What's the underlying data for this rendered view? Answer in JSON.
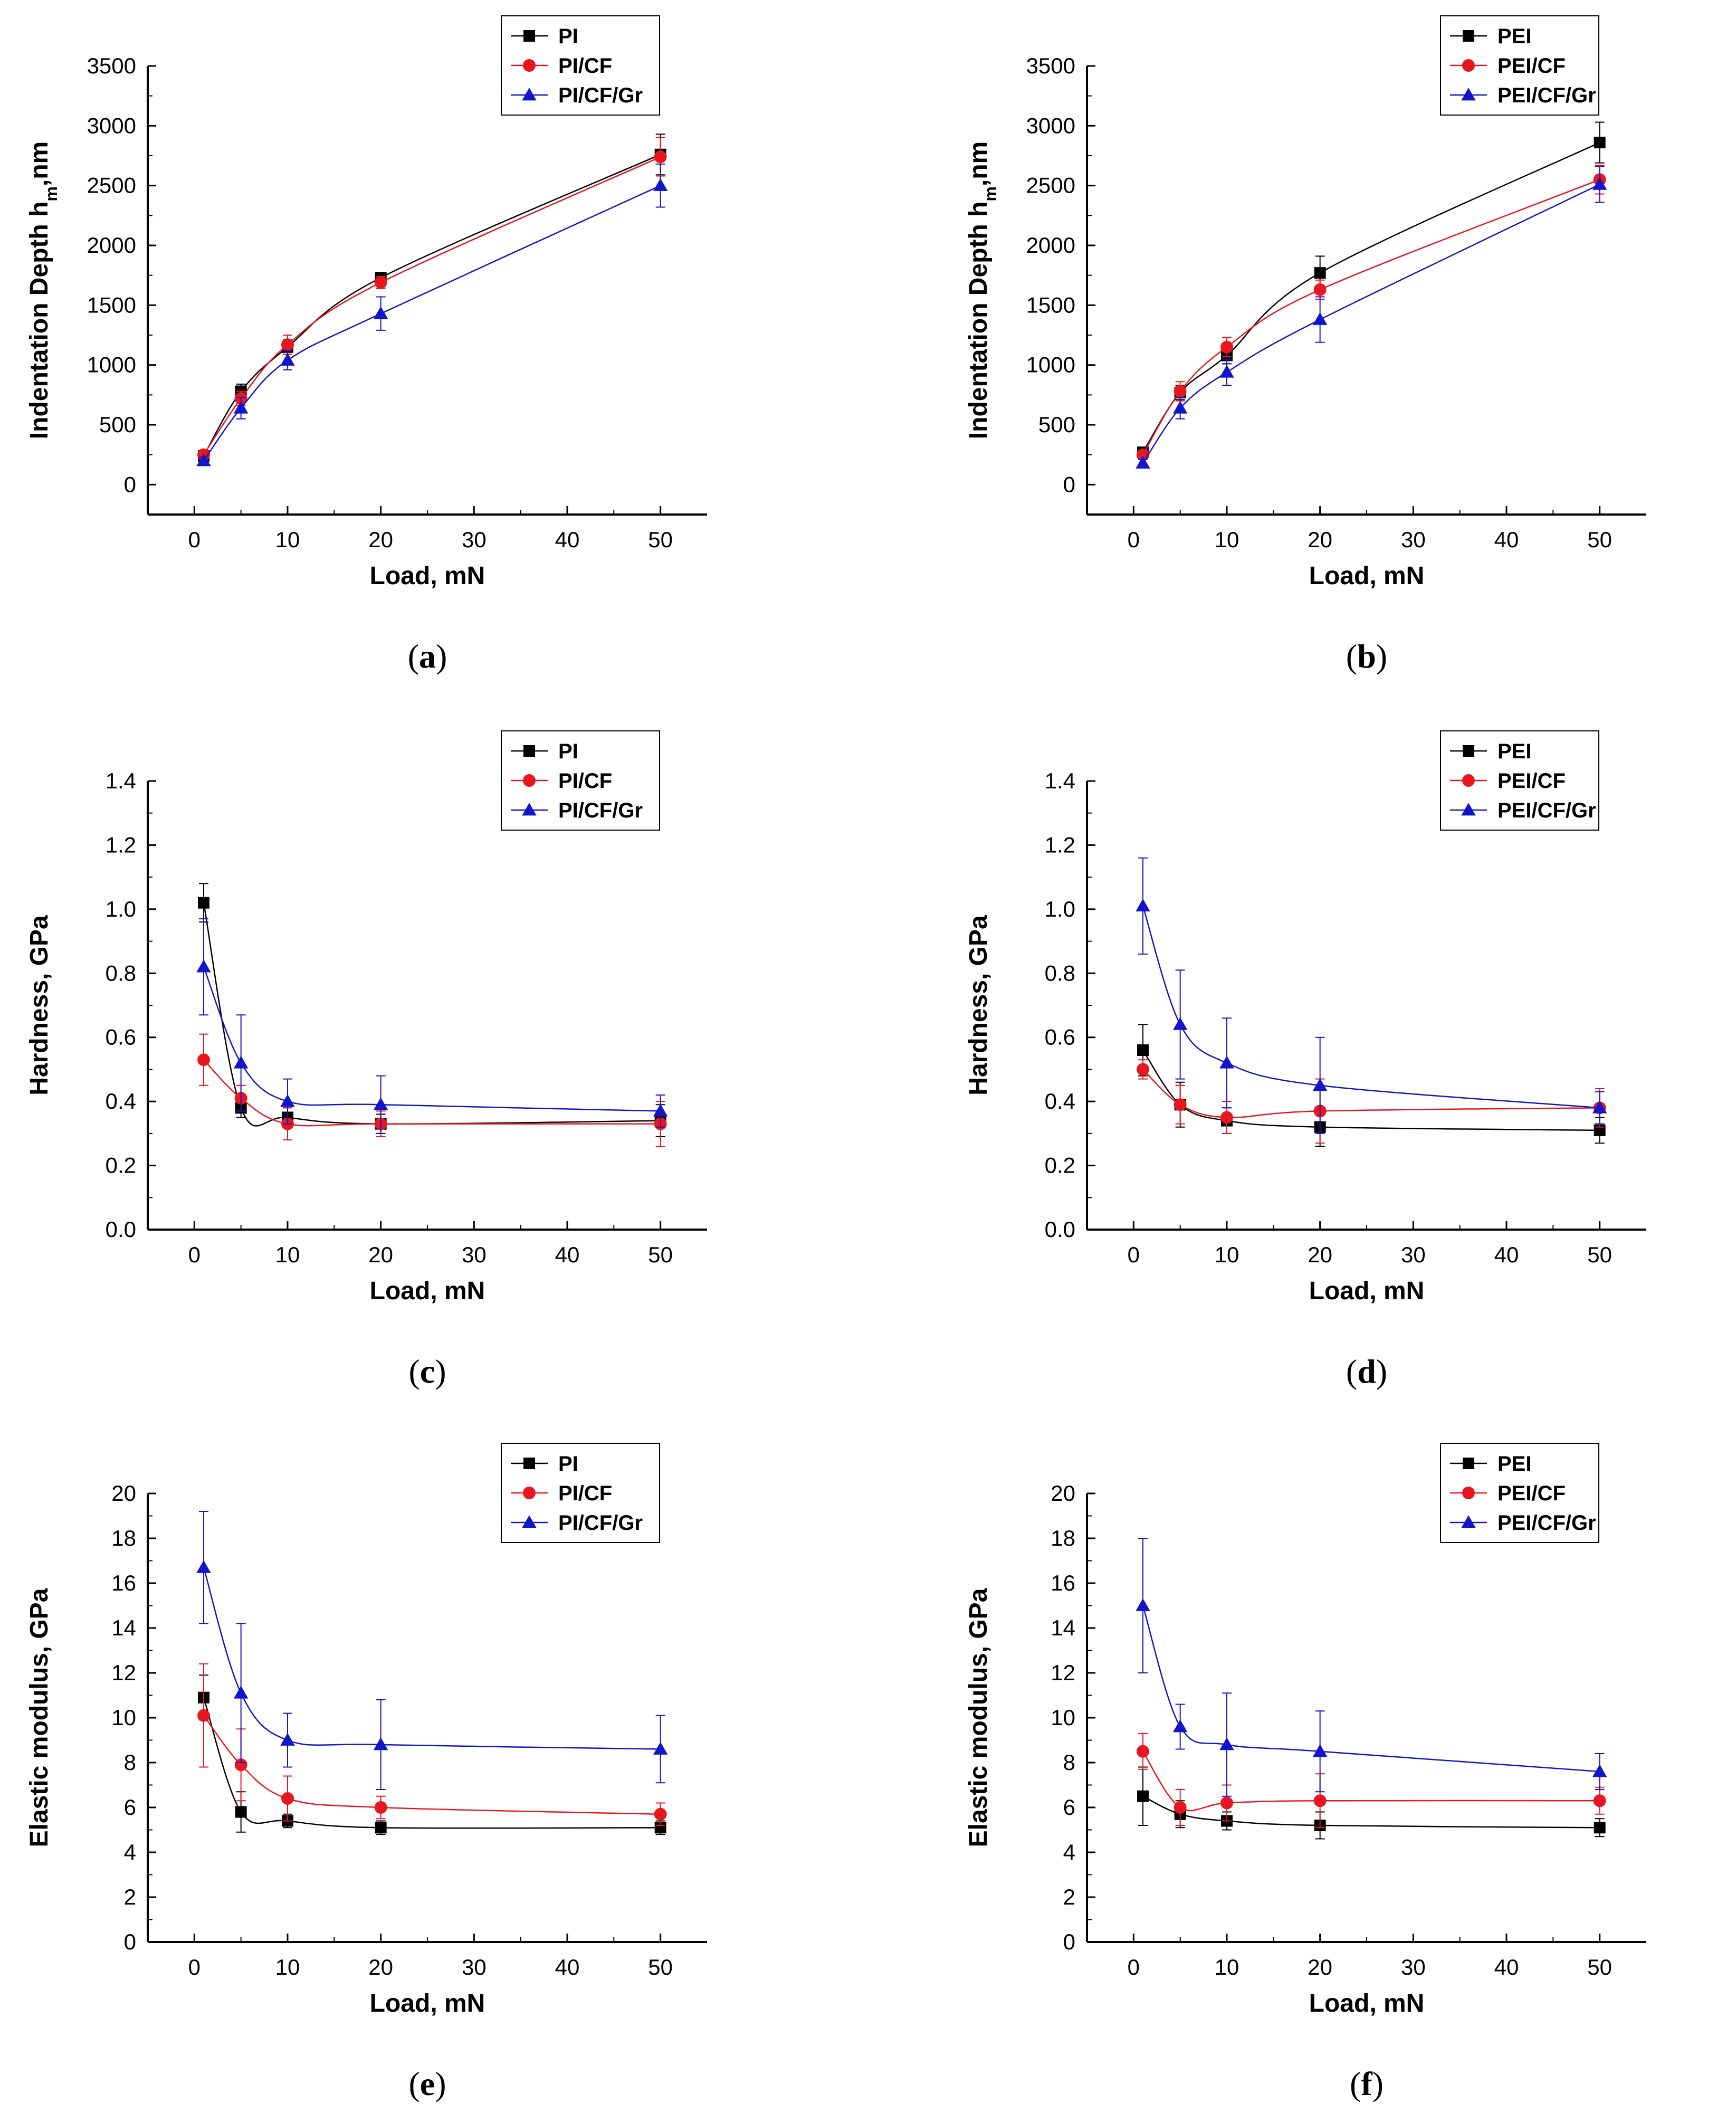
{
  "figure": {
    "colors": {
      "black": "#000000",
      "red": "#e8161e",
      "blue": "#1414c8",
      "axis": "#000000"
    }
  },
  "chart_data": [
    {
      "id": "a",
      "panel_label": "a",
      "type": "line",
      "xlabel": "Load, mN",
      "ylabel_main": "Indentation Depth h",
      "ylabel_sub": "m",
      "ylabel_tail": ",nm",
      "xlim": [
        -5,
        55
      ],
      "ylim": [
        -250,
        3500
      ],
      "xticks": [
        0,
        10,
        20,
        30,
        40,
        50
      ],
      "yticks": [
        0,
        500,
        1000,
        1500,
        2000,
        2500,
        3000,
        3500
      ],
      "x": [
        1,
        5,
        10,
        20,
        50
      ],
      "legend_position": "top-right",
      "series": [
        {
          "name": "PI",
          "marker": "square",
          "color": "#000000",
          "values": [
            240,
            780,
            1150,
            1730,
            2760
          ],
          "errors": [
            30,
            60,
            60,
            40,
            170
          ]
        },
        {
          "name": "PI/CF",
          "marker": "circle",
          "color": "#e8161e",
          "values": [
            250,
            720,
            1170,
            1690,
            2740
          ],
          "errors": [
            30,
            60,
            80,
            50,
            160
          ]
        },
        {
          "name": "PI/CF/Gr",
          "marker": "triangle",
          "color": "#1414c8",
          "values": [
            200,
            640,
            1040,
            1430,
            2500
          ],
          "errors": [
            30,
            90,
            80,
            140,
            180
          ]
        }
      ]
    },
    {
      "id": "b",
      "panel_label": "b",
      "type": "line",
      "xlabel": "Load, mN",
      "ylabel_main": "Indentation Depth h",
      "ylabel_sub": "m",
      "ylabel_tail": ",nm",
      "xlim": [
        -5,
        55
      ],
      "ylim": [
        -250,
        3500
      ],
      "xticks": [
        0,
        10,
        20,
        30,
        40,
        50
      ],
      "yticks": [
        0,
        500,
        1000,
        1500,
        2000,
        2500,
        3000,
        3500
      ],
      "x": [
        1,
        5,
        10,
        20,
        50
      ],
      "legend_position": "top-right",
      "series": [
        {
          "name": "PEI",
          "marker": "square",
          "color": "#000000",
          "values": [
            270,
            770,
            1080,
            1770,
            2860
          ],
          "errors": [
            30,
            60,
            70,
            140,
            170
          ]
        },
        {
          "name": "PEI/CF",
          "marker": "circle",
          "color": "#e8161e",
          "values": [
            250,
            780,
            1150,
            1630,
            2550
          ],
          "errors": [
            30,
            80,
            80,
            80,
            120
          ]
        },
        {
          "name": "PEI/CF/Gr",
          "marker": "triangle",
          "color": "#1414c8",
          "values": [
            180,
            640,
            940,
            1380,
            2510
          ],
          "errors": [
            30,
            90,
            110,
            190,
            150
          ]
        }
      ]
    },
    {
      "id": "c",
      "panel_label": "c",
      "type": "line",
      "xlabel": "Load, mN",
      "ylabel_main": "Hardness, GPa",
      "ylabel_sub": "",
      "ylabel_tail": "",
      "xlim": [
        -5,
        55
      ],
      "ylim": [
        0,
        1.4
      ],
      "xticks": [
        0,
        10,
        20,
        30,
        40,
        50
      ],
      "yticks": [
        0.0,
        0.2,
        0.4,
        0.6,
        0.8,
        1.0,
        1.2,
        1.4
      ],
      "ytick_decimals": 1,
      "x": [
        1,
        5,
        10,
        20,
        50
      ],
      "legend_position": "top-right",
      "series": [
        {
          "name": "PI",
          "marker": "square",
          "color": "#000000",
          "values": [
            1.02,
            0.38,
            0.35,
            0.33,
            0.34
          ],
          "errors": [
            0.06,
            0.03,
            0.03,
            0.03,
            0.05
          ]
        },
        {
          "name": "PI/CF",
          "marker": "circle",
          "color": "#e8161e",
          "values": [
            0.53,
            0.41,
            0.33,
            0.33,
            0.33
          ],
          "errors": [
            0.08,
            0.04,
            0.05,
            0.04,
            0.07
          ]
        },
        {
          "name": "PI/CF/Gr",
          "marker": "triangle",
          "color": "#1414c8",
          "values": [
            0.82,
            0.52,
            0.4,
            0.39,
            0.37
          ],
          "errors": [
            0.15,
            0.15,
            0.07,
            0.09,
            0.05
          ]
        }
      ]
    },
    {
      "id": "d",
      "panel_label": "d",
      "type": "line",
      "xlabel": "Load, mN",
      "ylabel_main": "Hardness, GPa",
      "ylabel_sub": "",
      "ylabel_tail": "",
      "xlim": [
        -5,
        55
      ],
      "ylim": [
        0,
        1.4
      ],
      "xticks": [
        0,
        10,
        20,
        30,
        40,
        50
      ],
      "yticks": [
        0.0,
        0.2,
        0.4,
        0.6,
        0.8,
        1.0,
        1.2,
        1.4
      ],
      "ytick_decimals": 1,
      "x": [
        1,
        5,
        10,
        20,
        50
      ],
      "legend_position": "top-right",
      "series": [
        {
          "name": "PEI",
          "marker": "square",
          "color": "#000000",
          "values": [
            0.56,
            0.39,
            0.34,
            0.32,
            0.31
          ],
          "errors": [
            0.08,
            0.07,
            0.04,
            0.06,
            0.04
          ]
        },
        {
          "name": "PEI/CF",
          "marker": "circle",
          "color": "#e8161e",
          "values": [
            0.5,
            0.39,
            0.35,
            0.37,
            0.38
          ],
          "errors": [
            0.03,
            0.06,
            0.05,
            0.1,
            0.06
          ]
        },
        {
          "name": "PEI/CF/Gr",
          "marker": "triangle",
          "color": "#1414c8",
          "values": [
            1.01,
            0.64,
            0.52,
            0.45,
            0.38
          ],
          "errors": [
            0.15,
            0.17,
            0.14,
            0.15,
            0.05
          ]
        }
      ]
    },
    {
      "id": "e",
      "panel_label": "e",
      "type": "line",
      "xlabel": "Load, mN",
      "ylabel_main": "Elastic modulus, GPa",
      "ylabel_sub": "",
      "ylabel_tail": "",
      "xlim": [
        -5,
        55
      ],
      "ylim": [
        0,
        20
      ],
      "xticks": [
        0,
        10,
        20,
        30,
        40,
        50
      ],
      "yticks": [
        0,
        2,
        4,
        6,
        8,
        10,
        12,
        14,
        16,
        18,
        20
      ],
      "x": [
        1,
        5,
        10,
        20,
        50
      ],
      "legend_position": "top-right",
      "series": [
        {
          "name": "PI",
          "marker": "square",
          "color": "#000000",
          "values": [
            10.9,
            5.8,
            5.4,
            5.1,
            5.1
          ],
          "errors": [
            1.0,
            0.9,
            0.3,
            0.3,
            0.3
          ]
        },
        {
          "name": "PI/CF",
          "marker": "circle",
          "color": "#e8161e",
          "values": [
            10.1,
            7.9,
            6.4,
            6.0,
            5.7
          ],
          "errors": [
            2.3,
            1.6,
            1.0,
            0.5,
            0.5
          ]
        },
        {
          "name": "PI/CF/Gr",
          "marker": "triangle",
          "color": "#1414c8",
          "values": [
            16.7,
            11.1,
            9.0,
            8.8,
            8.6
          ],
          "errors": [
            2.5,
            3.1,
            1.2,
            2.0,
            1.5
          ]
        }
      ]
    },
    {
      "id": "f",
      "panel_label": "f",
      "type": "line",
      "xlabel": "Load, mN",
      "ylabel_main": "Elastic modulus, GPa",
      "ylabel_sub": "",
      "ylabel_tail": "",
      "xlim": [
        -5,
        55
      ],
      "ylim": [
        0,
        20
      ],
      "xticks": [
        0,
        10,
        20,
        30,
        40,
        50
      ],
      "yticks": [
        0,
        2,
        4,
        6,
        8,
        10,
        12,
        14,
        16,
        18,
        20
      ],
      "x": [
        1,
        5,
        10,
        20,
        50
      ],
      "legend_position": "top-right",
      "series": [
        {
          "name": "PEI",
          "marker": "square",
          "color": "#000000",
          "values": [
            6.5,
            5.7,
            5.4,
            5.2,
            5.1
          ],
          "errors": [
            1.3,
            0.6,
            0.4,
            0.6,
            0.4
          ]
        },
        {
          "name": "PEI/CF",
          "marker": "circle",
          "color": "#e8161e",
          "values": [
            8.5,
            6.0,
            6.2,
            6.3,
            6.3
          ],
          "errors": [
            0.8,
            0.8,
            0.8,
            1.2,
            0.6
          ]
        },
        {
          "name": "PEI/CF/Gr",
          "marker": "triangle",
          "color": "#1414c8",
          "values": [
            15.0,
            9.6,
            8.8,
            8.5,
            7.6
          ],
          "errors": [
            3.0,
            1.0,
            2.3,
            1.8,
            0.8
          ]
        }
      ]
    }
  ]
}
